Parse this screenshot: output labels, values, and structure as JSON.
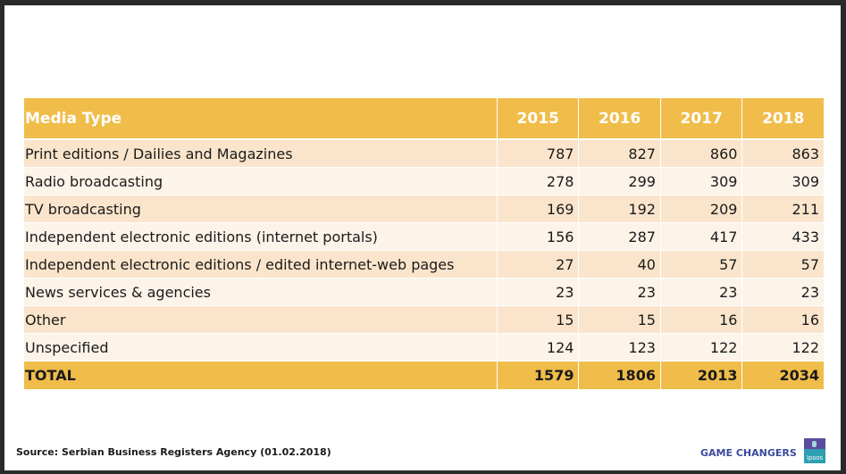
{
  "table": {
    "headers": [
      "Media Type",
      "2015",
      "2016",
      "2017",
      "2018"
    ],
    "rows": [
      {
        "type": "Print editions / Dailies and Magazines",
        "v2015": "787",
        "v2016": "827",
        "v2017": "860",
        "v2018": "863"
      },
      {
        "type": "Radio broadcasting",
        "v2015": "278",
        "v2016": "299",
        "v2017": "309",
        "v2018": "309"
      },
      {
        "type": "TV broadcasting",
        "v2015": "169",
        "v2016": "192",
        "v2017": "209",
        "v2018": "211"
      },
      {
        "type": "Independent electronic editions (internet portals)",
        "v2015": "156",
        "v2016": "287",
        "v2017": "417",
        "v2018": "433"
      },
      {
        "type": "Independent electronic editions / edited internet-web pages",
        "v2015": "27",
        "v2016": "40",
        "v2017": "57",
        "v2018": "57"
      },
      {
        "type": "News services & agencies",
        "v2015": "23",
        "v2016": "23",
        "v2017": "23",
        "v2018": "23"
      },
      {
        "type": "Other",
        "v2015": "15",
        "v2016": "15",
        "v2017": "16",
        "v2018": "16"
      },
      {
        "type": "Unspecified",
        "v2015": "124",
        "v2016": "123",
        "v2017": "122",
        "v2018": "122"
      }
    ],
    "total": {
      "type": "TOTAL",
      "v2015": "1579",
      "v2016": "1806",
      "v2017": "2013",
      "v2018": "2034"
    }
  },
  "footer": {
    "source": "Source: Serbian Business Registers Agency (01.02.2018)",
    "tagline": "GAME CHANGERS",
    "logo_text": "Ipsos"
  },
  "colors": {
    "header_bg": "#f0bd4a",
    "row_odd": "#fae5cc",
    "row_even": "#fcf3e9",
    "tagline": "#3b4a9c"
  }
}
